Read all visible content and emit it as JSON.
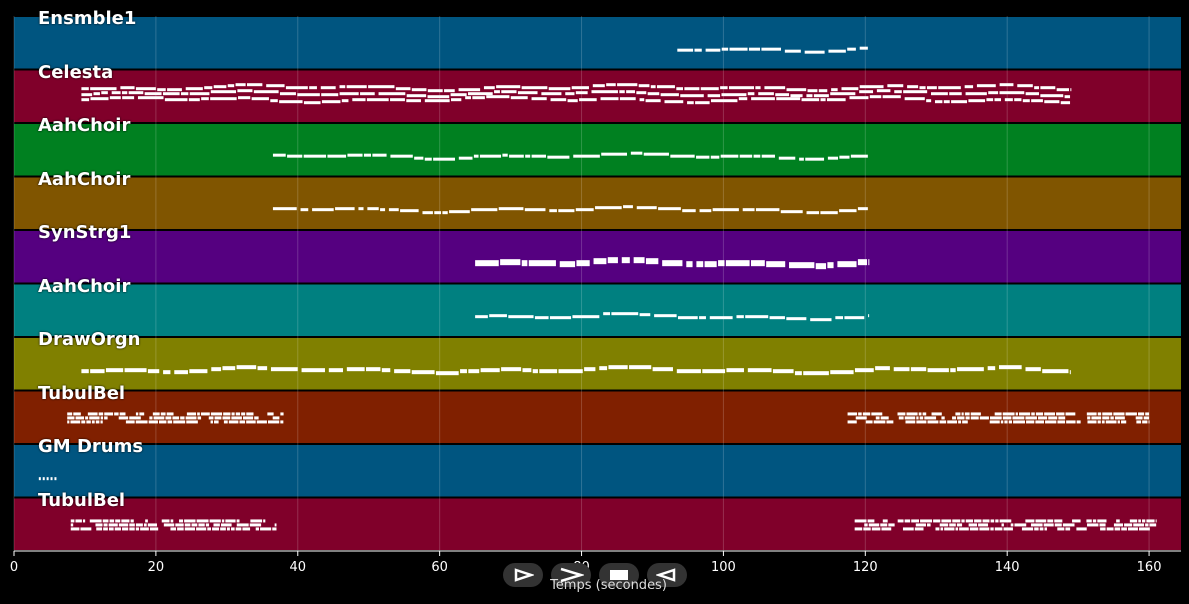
{
  "tracks": [
    {
      "label": "Ensmble1",
      "color": "#005580",
      "pattern": "line",
      "range": [
        93.5,
        120.5
      ],
      "rows": 1,
      "thickness": 3
    },
    {
      "label": "Celesta",
      "color": "#80002a",
      "pattern": "line",
      "range": [
        9.5,
        149
      ],
      "rows": 3,
      "thickness": 3
    },
    {
      "label": "AahChoir",
      "color": "#008020",
      "pattern": "line",
      "range": [
        36.5,
        120.5
      ],
      "rows": 1,
      "thickness": 3
    },
    {
      "label": "AahChoir",
      "color": "#805500",
      "pattern": "line",
      "range": [
        36.5,
        120.5
      ],
      "rows": 1,
      "thickness": 3
    },
    {
      "label": "SynStrg1",
      "color": "#550080",
      "pattern": "line",
      "range": [
        65,
        120.5
      ],
      "rows": 1,
      "thickness": 6
    },
    {
      "label": "AahChoir",
      "color": "#008080",
      "pattern": "line",
      "range": [
        65,
        120.5
      ],
      "rows": 1,
      "thickness": 3
    },
    {
      "label": "DrawOrgn",
      "color": "#808000",
      "pattern": "line",
      "range": [
        9.5,
        149
      ],
      "rows": 1,
      "thickness": 4
    },
    {
      "label": "TubulBel",
      "color": "#802000",
      "pattern": "blocks",
      "ranges": [
        [
          7.5,
          38
        ],
        [
          117.5,
          160
        ]
      ],
      "rows": 3,
      "thickness": 3
    },
    {
      "label": "GM Drums",
      "color": "#005580",
      "pattern": "dots",
      "ranges": [
        [
          3.5,
          6
        ]
      ],
      "rows": 1,
      "thickness": 2
    },
    {
      "label": "TubulBel",
      "color": "#80002a",
      "pattern": "blocks",
      "ranges": [
        [
          8,
          37
        ],
        [
          118.5,
          161
        ]
      ],
      "rows": 3,
      "thickness": 3
    }
  ],
  "xaxis": {
    "label": "Temps (secondes)",
    "ticks": [
      0,
      20,
      40,
      60,
      80,
      100,
      120,
      140,
      160
    ],
    "min": 0,
    "max": 164.5
  },
  "controls": [
    {
      "name": "play-icon"
    },
    {
      "name": "forward-icon"
    },
    {
      "name": "stop-icon"
    },
    {
      "name": "rewind-icon"
    }
  ]
}
